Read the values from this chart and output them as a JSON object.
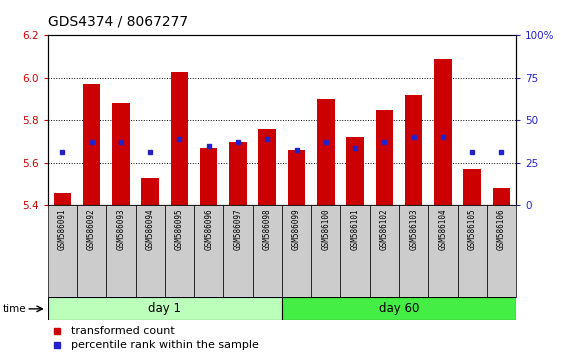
{
  "title": "GDS4374 / 8067277",
  "samples": [
    "GSM586091",
    "GSM586092",
    "GSM586093",
    "GSM586094",
    "GSM586095",
    "GSM586096",
    "GSM586097",
    "GSM586098",
    "GSM586099",
    "GSM586100",
    "GSM586101",
    "GSM586102",
    "GSM586103",
    "GSM586104",
    "GSM586105",
    "GSM586106"
  ],
  "bar_bottoms": [
    5.4,
    5.4,
    5.4,
    5.4,
    5.4,
    5.4,
    5.4,
    5.4,
    5.4,
    5.4,
    5.4,
    5.4,
    5.4,
    5.4,
    5.4,
    5.4
  ],
  "bar_tops": [
    5.46,
    5.97,
    5.88,
    5.53,
    6.03,
    5.67,
    5.7,
    5.76,
    5.66,
    5.9,
    5.72,
    5.85,
    5.92,
    6.09,
    5.57,
    5.48
  ],
  "blue_dot_values": [
    5.65,
    5.7,
    5.7,
    5.65,
    5.71,
    5.68,
    5.7,
    5.71,
    5.66,
    5.7,
    5.67,
    5.7,
    5.72,
    5.72,
    5.65,
    5.65
  ],
  "ylim_left": [
    5.4,
    6.2
  ],
  "ylim_right": [
    0,
    100
  ],
  "yticks_left": [
    5.4,
    5.6,
    5.8,
    6.0,
    6.2
  ],
  "yticks_right": [
    0,
    25,
    50,
    75,
    100
  ],
  "ytick_labels_right": [
    "0",
    "25",
    "50",
    "75",
    "100%"
  ],
  "bar_color": "#cc0000",
  "dot_color": "#2222cc",
  "day1_color": "#bbffbb",
  "day60_color": "#44ee44",
  "group_bg_color": "#cccccc",
  "legend_bar_label": "transformed count",
  "legend_dot_label": "percentile rank within the sample",
  "time_label": "time",
  "left_tick_color": "#cc0000",
  "right_tick_color": "#2222cc",
  "title_fontsize": 10,
  "tick_fontsize": 7.5,
  "label_fontsize": 8,
  "bar_width": 0.6
}
